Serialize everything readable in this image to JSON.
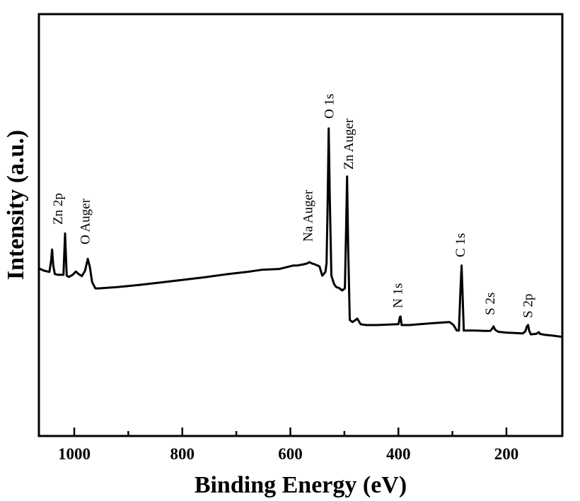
{
  "chart_data": {
    "type": "line",
    "title": "",
    "xlabel": "Binding Energy (eV)",
    "ylabel": "Intensity (a.u.)",
    "xlim": [
      1065,
      96
    ],
    "ylim": [
      0,
      100
    ],
    "x_reversed": true,
    "grid": false,
    "legend": "none",
    "x_ticks": [
      1000,
      900,
      800,
      700,
      600,
      500,
      400,
      300,
      200
    ],
    "x_tick_labels": [
      "1000",
      "800",
      "600",
      "400",
      "200"
    ],
    "x_tick_label_values": [
      1000,
      800,
      600,
      400,
      200
    ],
    "series": [
      {
        "name": "XPS survey",
        "color": "#000000",
        "x": [
          1065,
          1056,
          1046,
          1043,
          1041,
          1039,
          1036,
          1030,
          1020,
          1017,
          1014,
          1010,
          1003,
          997,
          992,
          986,
          980,
          975,
          971,
          967,
          961,
          955,
          920,
          880,
          840,
          800,
          760,
          720,
          680,
          653,
          620,
          595,
          588,
          575,
          569,
          565,
          560,
          555,
          546,
          541,
          535,
          533,
          531,
          529,
          527,
          524,
          519,
          515,
          510,
          504,
          499,
          497,
          495,
          493,
          490,
          485,
          476,
          470,
          460,
          440,
          420,
          400,
          397,
          396,
          394,
          380,
          360,
          330,
          305,
          298,
          292,
          288,
          285,
          283,
          281,
          279,
          275,
          260,
          240,
          230,
          226,
          224,
          221,
          215,
          200,
          185,
          170,
          165,
          162,
          160,
          158,
          155,
          145,
          140,
          138,
          130,
          115,
          97
        ],
        "y": [
          39.7,
          39.2,
          38.9,
          41.5,
          44.2,
          40.5,
          38.4,
          38.2,
          38.2,
          48.0,
          38.0,
          37.7,
          38.2,
          39.0,
          38.4,
          37.9,
          39.2,
          42.0,
          40.0,
          36.5,
          35.0,
          35.0,
          35.3,
          35.8,
          36.4,
          37.0,
          37.6,
          38.3,
          38.9,
          39.4,
          39.6,
          40.4,
          40.4,
          40.7,
          40.9,
          41.2,
          40.9,
          40.7,
          40.2,
          38.0,
          38.9,
          41.0,
          55.0,
          72.9,
          56.0,
          38.0,
          36.0,
          35.3,
          35.1,
          34.5,
          35.0,
          48.0,
          61.5,
          45.0,
          27.5,
          27.0,
          27.8,
          26.5,
          26.3,
          26.3,
          26.4,
          26.5,
          28.2,
          28.3,
          26.3,
          26.3,
          26.5,
          26.8,
          27.0,
          26.3,
          25.0,
          25.0,
          35.0,
          40.4,
          33.0,
          25.0,
          25.0,
          25.0,
          24.9,
          24.9,
          25.5,
          26.0,
          25.2,
          24.7,
          24.5,
          24.4,
          24.3,
          24.8,
          26.0,
          26.3,
          25.0,
          24.1,
          24.2,
          24.6,
          24.2,
          24.0,
          23.8,
          23.5
        ]
      }
    ],
    "annotations": [
      {
        "text": "Zn 2p",
        "x": 1030
      },
      {
        "text": "O Auger",
        "x": 980
      },
      {
        "text": "Na Auger",
        "x": 567
      },
      {
        "text": "O 1s",
        "x": 528
      },
      {
        "text": "Zn Auger",
        "x": 492
      },
      {
        "text": "N 1s",
        "x": 401
      },
      {
        "text": "C 1s",
        "x": 285
      },
      {
        "text": "S 2s",
        "x": 230
      },
      {
        "text": "S 2p",
        "x": 160
      }
    ]
  }
}
